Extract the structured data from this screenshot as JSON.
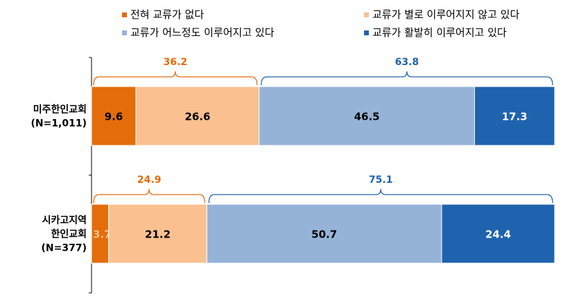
{
  "chart_data": {
    "type": "bar",
    "stacked": true,
    "orientation": "horizontal",
    "xlim": [
      0,
      100
    ],
    "legend_position": "top",
    "legend": [
      {
        "label": "전혀 교류가 없다",
        "color": "#E46C0A"
      },
      {
        "label": "교류가 별로 이루어지지 않고 있다",
        "color": "#FAC090"
      },
      {
        "label": "교류가 어느정도 이루어지고 있다",
        "color": "#95B3D7"
      },
      {
        "label": "교류가 활발히 이루어지고 있다",
        "color": "#1F63AE"
      }
    ],
    "categories": [
      {
        "lines": [
          "미주한인교회",
          "(N=1,011)"
        ]
      },
      {
        "lines": [
          "시카고지역",
          "한인교회",
          "(N=377)"
        ]
      }
    ],
    "series": [
      {
        "name": "전혀 교류가 없다",
        "color": "#E46C0A",
        "label_color": "#000000",
        "values": [
          9.6,
          3.7
        ],
        "labels": [
          "9.6",
          "3.7"
        ]
      },
      {
        "name": "교류가 별로 이루어지지 않고 있다",
        "color": "#FAC090",
        "label_color": "#000000",
        "values": [
          26.6,
          21.2
        ],
        "labels": [
          "26.6",
          "21.2"
        ]
      },
      {
        "name": "교류가 어느정도 이루어지고 있다",
        "color": "#95B3D7",
        "label_color": "#000000",
        "values": [
          46.5,
          50.7
        ],
        "labels": [
          "46.5",
          "50.7"
        ]
      },
      {
        "name": "교류가 활발히 이루어지고 있다",
        "color": "#1F63AE",
        "label_color": "#ffffff",
        "values": [
          17.3,
          24.4
        ],
        "labels": [
          "17.3",
          "24.4"
        ]
      }
    ],
    "label_color_overrides": [
      {
        "series": 0,
        "row": 1,
        "color": "#FAC090"
      }
    ],
    "brackets": [
      {
        "row": 0,
        "from": 0,
        "to": 36.2,
        "label": "36.2",
        "color": "#E46C0A"
      },
      {
        "row": 0,
        "from": 36.2,
        "to": 100,
        "label": "63.8",
        "color": "#1F63AE"
      },
      {
        "row": 1,
        "from": 0,
        "to": 24.9,
        "label": "24.9",
        "color": "#E46C0A"
      },
      {
        "row": 1,
        "from": 24.9,
        "to": 100,
        "label": "75.1",
        "color": "#1F63AE"
      }
    ]
  }
}
